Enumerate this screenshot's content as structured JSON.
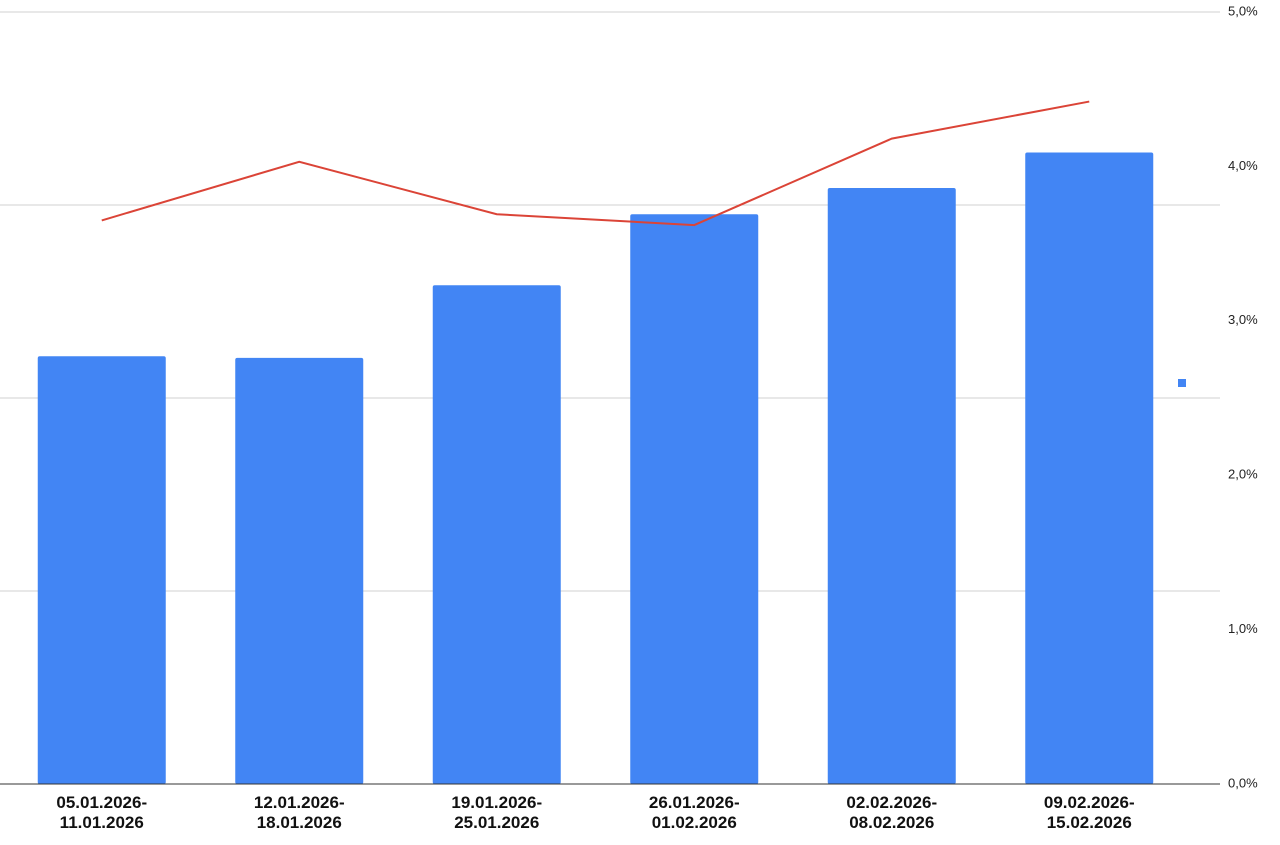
{
  "chart_data": {
    "type": "bar",
    "categories": [
      "05.01.2026-11.01.2026",
      "12.01.2026-18.01.2026",
      "19.01.2026-25.01.2026",
      "26.01.2026-01.02.2026",
      "02.02.2026-08.02.2026",
      "09.02.2026-15.02.2026"
    ],
    "series": [
      {
        "type": "bar",
        "color": "#4285f4",
        "axis": "y",
        "values": [
          2.77,
          2.76,
          3.23,
          3.69,
          3.86,
          4.09
        ]
      },
      {
        "type": "line",
        "color": "#db4437",
        "axis": "y2",
        "values": [
          3.65,
          4.03,
          3.69,
          3.62,
          4.18,
          4.42
        ]
      }
    ],
    "ylim": [
      0,
      5
    ],
    "ygrid": [
      0,
      1.25,
      2.5,
      3.75,
      5
    ],
    "y2lim": [
      0,
      5
    ],
    "y2ticks": [
      {
        "value": 0,
        "label": "0,0%"
      },
      {
        "value": 1,
        "label": "1,0%"
      },
      {
        "value": 2,
        "label": "2,0%"
      },
      {
        "value": 3,
        "label": "3,0%"
      },
      {
        "value": 4,
        "label": "4,0%"
      },
      {
        "value": 5,
        "label": "5,0%"
      }
    ],
    "grid": true,
    "legend": "right"
  }
}
